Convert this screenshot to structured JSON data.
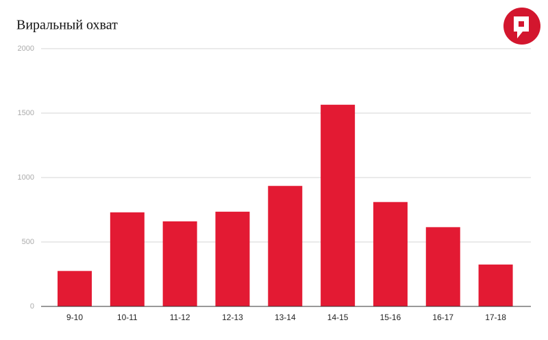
{
  "chart_data": {
    "type": "bar",
    "title": "Виральный охват",
    "categories": [
      "9-10",
      "10-11",
      "11-12",
      "12-13",
      "13-14",
      "14-15",
      "15-16",
      "16-17",
      "17-18"
    ],
    "values": [
      275,
      730,
      660,
      735,
      935,
      1565,
      810,
      615,
      325
    ],
    "color": "#e31a33",
    "ylim": [
      0,
      2000
    ],
    "yticks": [
      0,
      500,
      1000,
      1500,
      2000
    ],
    "grid": true
  }
}
